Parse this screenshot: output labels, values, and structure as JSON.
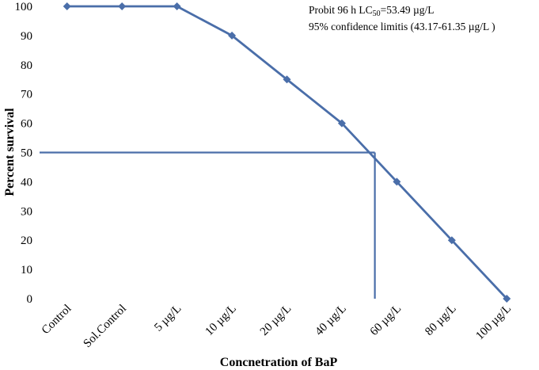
{
  "chart_data": {
    "type": "line",
    "categories": [
      "Control",
      "Sol.Control",
      "5 µg/L",
      "10  µg/L",
      "20  µg/L",
      "40  µg/L",
      "60  µg/L",
      "80  µg/L",
      "100  µg/L"
    ],
    "series": [
      {
        "values": [
          100,
          100,
          100,
          90,
          75,
          60,
          40,
          20,
          0
        ],
        "color": "#4a6ea9"
      }
    ],
    "reference_lines": {
      "y": 50,
      "x_position_between": [
        "40  µg/L",
        "60  µg/L"
      ],
      "x_fraction": 0.6,
      "color": "#4a6ea9"
    },
    "ylabel": "Percent survival",
    "xlabel": "Concnetration of BaP",
    "ylim": [
      0,
      100
    ],
    "yticks": [
      0,
      10,
      20,
      30,
      40,
      50,
      60,
      70,
      80,
      90,
      100
    ],
    "grid": false,
    "annotation": {
      "line1_prefix": "Probit 96 h LC",
      "line1_sub": "50",
      "line1_suffix": "=53.49 µg/L",
      "line2": "95% confidence limitis  (43.17-61.35  µg/L )"
    }
  }
}
